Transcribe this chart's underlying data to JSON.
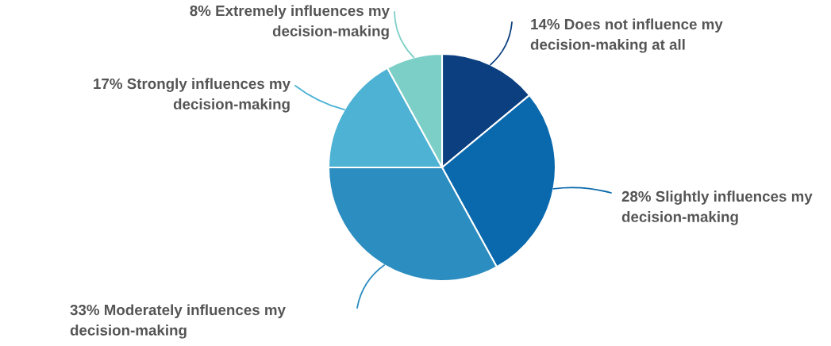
{
  "chart_data": {
    "type": "pie",
    "categories": [
      "14% Does not influence my\ndecision-making at all",
      "28% Slightly influences my\ndecision-making",
      "33% Moderately influences my\ndecision-making",
      "17% Strongly influences my\ndecision-making",
      "8% Extremely influences my\ndecision-making"
    ],
    "values": [
      14,
      28,
      33,
      17,
      8
    ],
    "colors": [
      "#0b3f7f",
      "#0a69ad",
      "#2b8dc0",
      "#4db2d4",
      "#7ccfc6"
    ]
  }
}
